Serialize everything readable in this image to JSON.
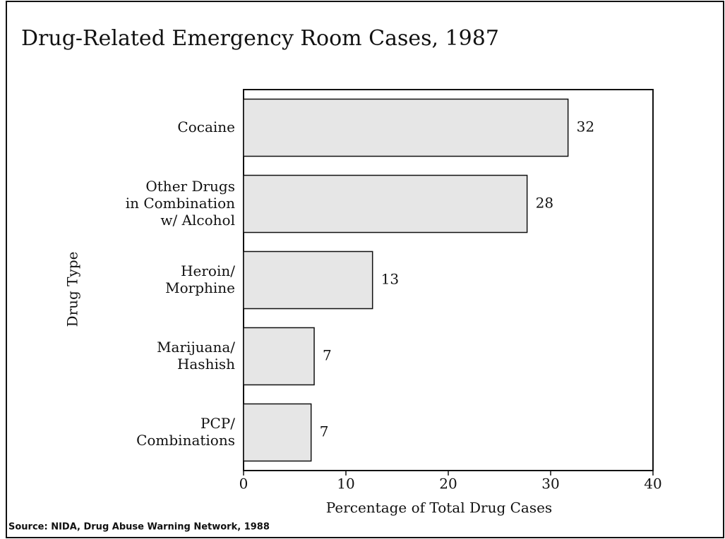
{
  "chart_data": {
    "type": "bar",
    "orientation": "horizontal",
    "title": "Drug-Related Emergency Room Cases, 1987",
    "x_label": "Percentage of Total Drug Cases",
    "y_label": "Drug Type",
    "source": "Source: NIDA, Drug Abuse Warning Network, 1988",
    "categories": [
      "Cocaine",
      "Other Drugs\nin Combination\nw/ Alcohol",
      "Heroin/\nMorphine",
      "Marijuana/\nHashish",
      "PCP/\nCombinations"
    ],
    "values": [
      31.7,
      27.7,
      12.6,
      6.9,
      6.6
    ],
    "value_labels": [
      "32",
      "28",
      "13",
      "7",
      "7"
    ],
    "color": "#e6e6e6",
    "xlim": [
      0,
      40
    ],
    "xticks": [
      0,
      10,
      20,
      30,
      40
    ],
    "grid": false
  }
}
